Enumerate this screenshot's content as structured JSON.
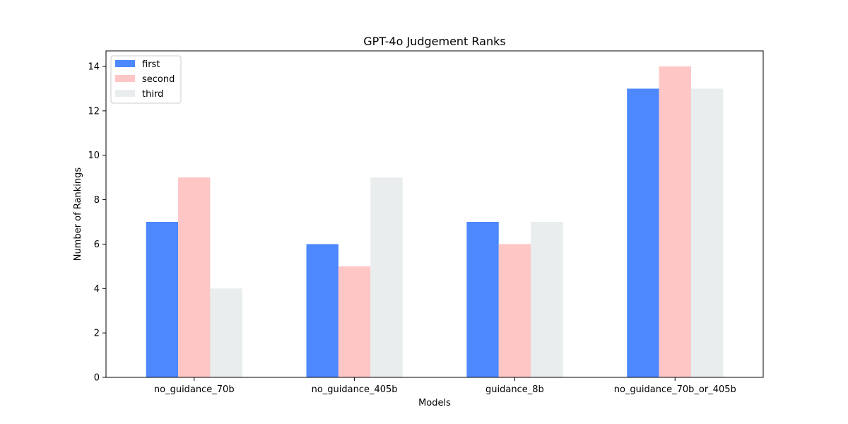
{
  "chart_data": {
    "type": "bar",
    "title": "GPT-4o Judgement Ranks",
    "xlabel": "Models",
    "ylabel": "Number of Rankings",
    "categories": [
      "no_guidance_70b",
      "no_guidance_405b",
      "guidance_8b",
      "no_guidance_70b_or_405b"
    ],
    "series": [
      {
        "name": "first",
        "values": [
          7,
          6,
          7,
          13
        ],
        "color": "#4d88ff"
      },
      {
        "name": "second",
        "values": [
          9,
          5,
          6,
          14
        ],
        "color": "#ffc6c6"
      },
      {
        "name": "third",
        "values": [
          4,
          9,
          7,
          13
        ],
        "color": "#e9eded"
      }
    ],
    "ylim": [
      0,
      14.7
    ],
    "yticks": [
      0,
      2,
      4,
      6,
      8,
      10,
      12,
      14
    ],
    "grid": false,
    "legend_position": "top-left"
  }
}
